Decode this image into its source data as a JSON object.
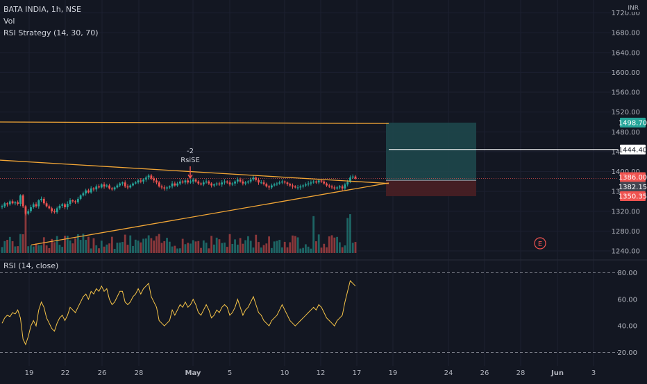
{
  "header": {
    "symbol_line": "BATA INDIA, 1h, NSE",
    "vol_label": "Vol",
    "strategy_label": "RSI Strategy (14, 30, 70)",
    "rsi_label": "RSI (14, close)",
    "currency": "INR"
  },
  "price_axis": {
    "ticks": [
      "1720.00",
      "1680.00",
      "1640.00",
      "1600.00",
      "1560.00",
      "1520.00",
      "1480.00",
      "1440.00",
      "1400.00",
      "1360.00",
      "1320.00",
      "1280.00",
      "1240.00"
    ],
    "price_range": [
      1226,
      1732
    ]
  },
  "rsi_axis": {
    "ticks": [
      "80.00",
      "60.00",
      "40.00",
      "20.00"
    ],
    "range": [
      14,
      86
    ]
  },
  "time_axis": {
    "labels": [
      "19",
      "22",
      "26",
      "28",
      "May",
      "5",
      "10",
      "12",
      "17",
      "19",
      "24",
      "26",
      "28",
      "Jun",
      "3"
    ]
  },
  "price_tags": {
    "target": {
      "text": "1498.70",
      "color": "#26a69a"
    },
    "entry": {
      "text": "1444.40",
      "color": "#ffffff"
    },
    "last": {
      "text": "1386.00",
      "color": "#ef5350"
    },
    "current": {
      "text": "1382.15",
      "color": "#787b86"
    },
    "stop": {
      "text": "1350.35",
      "color": "#ef5350"
    }
  },
  "annotation": {
    "count": "-2",
    "signal": "RsiSE"
  },
  "marker": {
    "earnings": "E"
  },
  "colors": {
    "up": "#26a69a",
    "down": "#ef5350",
    "trendline": "#f2a636",
    "rsi": "#f7c548",
    "position_profit": "#1e4a4e",
    "position_loss": "#4a1f24"
  },
  "chart_data": {
    "type": "candlestick",
    "symbol": "BATA INDIA",
    "interval": "1h",
    "closes": [
      1330,
      1336,
      1334,
      1340,
      1336,
      1338,
      1335,
      1352,
      1330,
      1315,
      1320,
      1328,
      1334,
      1330,
      1342,
      1345,
      1336,
      1330,
      1326,
      1320,
      1318,
      1326,
      1331,
      1334,
      1328,
      1335,
      1342,
      1340,
      1338,
      1345,
      1352,
      1356,
      1362,
      1358,
      1366,
      1364,
      1370,
      1368,
      1374,
      1370,
      1372,
      1366,
      1364,
      1368,
      1372,
      1376,
      1378,
      1370,
      1368,
      1372,
      1376,
      1378,
      1382,
      1380,
      1384,
      1388,
      1392,
      1386,
      1382,
      1378,
      1370,
      1368,
      1366,
      1368,
      1370,
      1376,
      1372,
      1376,
      1380,
      1378,
      1382,
      1378,
      1380,
      1384,
      1380,
      1376,
      1374,
      1378,
      1380,
      1376,
      1372,
      1374,
      1376,
      1374,
      1378,
      1380,
      1378,
      1374,
      1376,
      1380,
      1384,
      1380,
      1376,
      1378,
      1380,
      1384,
      1388,
      1383,
      1378,
      1378,
      1375,
      1370,
      1368,
      1372,
      1374,
      1376,
      1378,
      1380,
      1378,
      1375,
      1372,
      1370,
      1368,
      1368,
      1370,
      1372,
      1374,
      1376,
      1378,
      1380,
      1378,
      1382,
      1380,
      1376,
      1372,
      1370,
      1368,
      1366,
      1368,
      1370,
      1366,
      1374,
      1379,
      1388,
      1390,
      1386
    ],
    "rsi": [
      42,
      46,
      48,
      47,
      50,
      49,
      52,
      46,
      30,
      26,
      32,
      40,
      44,
      40,
      52,
      58,
      54,
      46,
      42,
      38,
      36,
      42,
      46,
      48,
      44,
      48,
      54,
      52,
      50,
      54,
      58,
      62,
      64,
      60,
      66,
      64,
      68,
      66,
      70,
      66,
      68,
      60,
      56,
      58,
      62,
      66,
      66,
      58,
      56,
      58,
      62,
      64,
      68,
      64,
      68,
      70,
      72,
      62,
      58,
      54,
      44,
      42,
      40,
      42,
      44,
      52,
      48,
      52,
      56,
      54,
      58,
      54,
      56,
      60,
      56,
      50,
      48,
      52,
      56,
      52,
      46,
      48,
      52,
      50,
      54,
      56,
      54,
      48,
      50,
      54,
      60,
      54,
      48,
      52,
      54,
      58,
      62,
      56,
      50,
      48,
      44,
      42,
      40,
      44,
      46,
      48,
      52,
      56,
      52,
      48,
      44,
      42,
      40,
      42,
      44,
      46,
      48,
      50,
      52,
      54,
      52,
      56,
      54,
      50,
      46,
      44,
      42,
      40,
      44,
      46,
      48,
      58,
      66,
      74,
      72,
      70
    ],
    "title": "BATA INDIA, 1h, NSE"
  }
}
